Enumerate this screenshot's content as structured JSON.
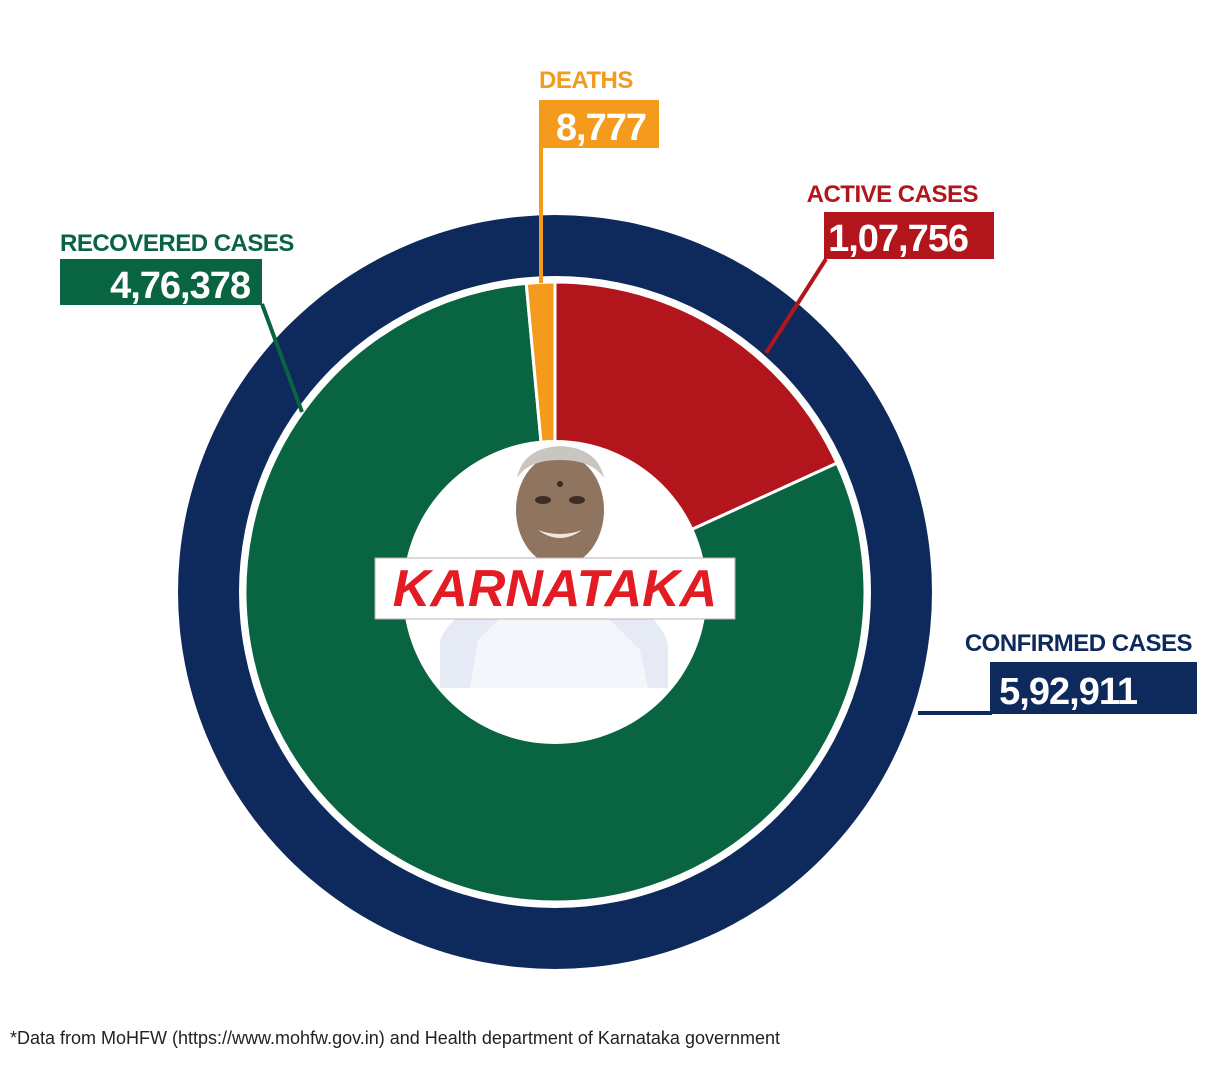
{
  "chart_data": {
    "type": "pie",
    "title": "KARNATAKA",
    "outer_ring": {
      "label": "CONFIRMED CASES",
      "value_label": "5,92,911",
      "value": 592911,
      "color": "#0e2a5c"
    },
    "slices": [
      {
        "label": "ACTIVE CASES",
        "value_label": "1,07,756",
        "value": 107756,
        "color": "#b2151b"
      },
      {
        "label": "RECOVERED CASES",
        "value_label": "4,76,378",
        "value": 476378,
        "color": "#086441"
      },
      {
        "label": "DEATHS",
        "value_label": "8,777",
        "value": 8777,
        "color": "#f49a1c"
      }
    ]
  },
  "footnote": "*Data from MoHFW (https://www.mohfw.gov.in) and Health department of Karnataka government"
}
